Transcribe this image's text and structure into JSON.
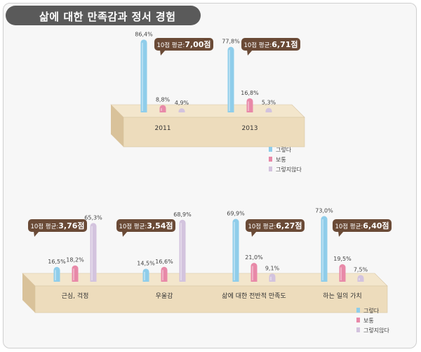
{
  "title": "삶에 대한 만족감과 정서 경험",
  "chart_data": [
    {
      "type": "bar",
      "title": "",
      "categories": [
        "2011",
        "2013"
      ],
      "series": [
        {
          "name": "그렇다",
          "color": "#8fcdea",
          "values": [
            86.4,
            77.8
          ],
          "labels": [
            "86,4%",
            "77,8%"
          ]
        },
        {
          "name": "보통",
          "color": "#e889a8",
          "values": [
            8.8,
            16.8
          ],
          "labels": [
            "8,8%",
            "16,8%"
          ]
        },
        {
          "name": "그렇지않다",
          "color": "#d3c3de",
          "values": [
            4.9,
            5.3
          ],
          "labels": [
            "4,9%",
            "5,3%"
          ]
        }
      ],
      "averages": [
        {
          "prefix": "10점 평균:",
          "value": "7,00점"
        },
        {
          "prefix": "10점 평균:",
          "value": "6,71점"
        }
      ],
      "ylim": [
        0,
        100
      ]
    },
    {
      "type": "bar",
      "title": "",
      "categories": [
        "근심, 걱정",
        "우울감",
        "삶에 대한 전반적 만족도",
        "하는 일의 가치"
      ],
      "series": [
        {
          "name": "그렇다",
          "color": "#8fcdea",
          "values": [
            16.5,
            14.5,
            69.9,
            73.0
          ],
          "labels": [
            "16,5%",
            "14,5%",
            "69,9%",
            "73,0%"
          ]
        },
        {
          "name": "보통",
          "color": "#e889a8",
          "values": [
            18.2,
            16.6,
            21.0,
            19.5
          ],
          "labels": [
            "18,2%",
            "16,6%",
            "21,0%",
            "19,5%"
          ]
        },
        {
          "name": "그렇지않다",
          "color": "#d3c3de",
          "values": [
            65.3,
            68.9,
            9.1,
            7.5
          ],
          "labels": [
            "65,3%",
            "68,9%",
            "9,1%",
            "7,5%"
          ]
        }
      ],
      "averages": [
        {
          "prefix": "10점 평균:",
          "value": "3,76점"
        },
        {
          "prefix": "10점 평균:",
          "value": "3,54점"
        },
        {
          "prefix": "10점 평균:",
          "value": "6,27점"
        },
        {
          "prefix": "10점 평균:",
          "value": "6,40점"
        }
      ],
      "ylim": [
        0,
        100
      ]
    }
  ],
  "legend": [
    {
      "label": "그렇다",
      "color": "#8fcdea"
    },
    {
      "label": "보통",
      "color": "#e889a8"
    },
    {
      "label": "그렇지않다",
      "color": "#d3c3de"
    }
  ],
  "colors": {
    "platform_top": "#f3e6cc",
    "platform_front": "#eddcbc",
    "platform_side": "#d9c29a",
    "badge": "#6a4a36",
    "badge_text": "#ffffff"
  }
}
